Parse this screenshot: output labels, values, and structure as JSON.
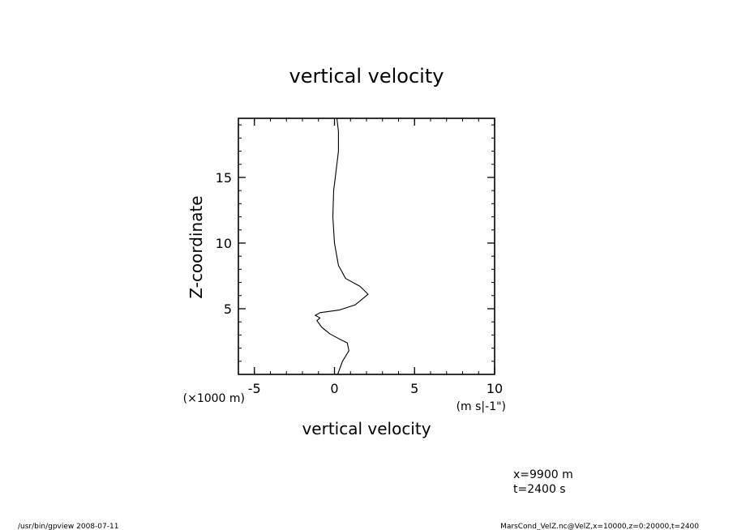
{
  "chart_data": {
    "type": "line",
    "title": "vertical velocity",
    "xlabel": "vertical velocity",
    "ylabel": "Z-coordinate",
    "x_unit": "(m s|-1\")",
    "y_unit": "(×1000 m)",
    "xlim": [
      -6,
      10
    ],
    "ylim": [
      0,
      19.5
    ],
    "x_ticks": [
      "-5",
      "0",
      "5",
      "10"
    ],
    "x_tick_values": [
      -5,
      0,
      5,
      10
    ],
    "y_ticks": [
      "5",
      "10",
      "15"
    ],
    "y_tick_values": [
      5,
      10,
      15
    ],
    "grid": false,
    "series": [
      {
        "x": [
          0.2,
          0.5,
          0.9,
          0.8,
          0.3,
          -0.3,
          -0.8,
          -1.1,
          -0.9,
          -1.2,
          -0.9,
          0.3,
          1.3,
          2.1,
          1.6,
          0.7,
          0.25,
          0.0,
          -0.1,
          -0.05,
          0.1,
          0.25,
          0.25,
          0.15
        ],
        "y": [
          0,
          1.0,
          1.8,
          2.4,
          2.7,
          3.1,
          3.6,
          4.1,
          4.3,
          4.5,
          4.7,
          4.9,
          5.3,
          6.1,
          6.7,
          7.3,
          8.3,
          10.0,
          12.0,
          14.0,
          15.5,
          17.0,
          18.5,
          19.5
        ]
      }
    ]
  },
  "annotations": {
    "x_info": "x=9900  m",
    "t_info": "t=2400  s",
    "footer_left": "/usr/bin/gpview   2008-07-11",
    "footer_right": "MarsCond_VelZ.nc@VelZ,x=10000,z=0:20000,t=2400"
  }
}
